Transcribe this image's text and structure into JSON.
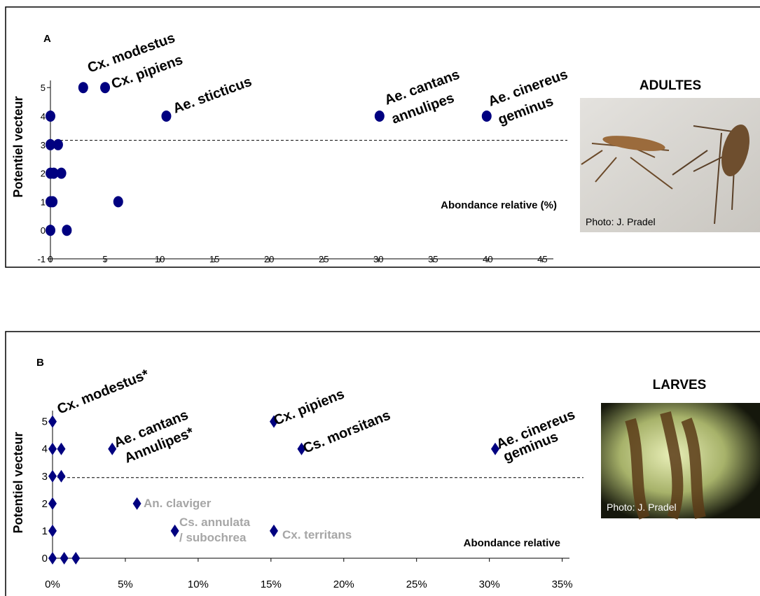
{
  "chart_data": [
    {
      "type": "scatter",
      "panel_label": "A",
      "y_label": "Potentiel vecteur",
      "x_label": "Abondance relative (%)",
      "marker": "circle",
      "color": "#000080",
      "x": [
        0,
        1.5,
        0,
        0.2,
        6.2,
        0,
        0.3,
        1,
        0,
        0.7,
        0,
        10.6,
        30.1,
        39.9,
        3,
        5
      ],
      "values": [
        0,
        0,
        1,
        1,
        1,
        2,
        2,
        2,
        3,
        3,
        4,
        4,
        4,
        4,
        5,
        5
      ],
      "xlim": [
        0,
        46
      ],
      "ylim": [
        -1,
        5.25
      ],
      "xticks": [
        0,
        5,
        10,
        15,
        20,
        25,
        30,
        35,
        40,
        45
      ],
      "yticks": [
        -1,
        0,
        1,
        2,
        3,
        4,
        5
      ],
      "reference_line": 3.15,
      "annotations": [
        {
          "lines": [
            "Cx. modestus"
          ],
          "color": "#000000"
        },
        {
          "lines": [
            "Cx. pipiens"
          ],
          "color": "#000000"
        },
        {
          "lines": [
            "Ae. sticticus"
          ],
          "color": "#000000"
        },
        {
          "lines": [
            "Ae. cantans",
            "annulipes"
          ],
          "color": "#000000"
        },
        {
          "lines": [
            "Ae. cinereus",
            "geminus"
          ],
          "color": "#000000"
        }
      ],
      "photo_title": "ADULTES",
      "photo_credit": "Photo: J. Pradel"
    },
    {
      "type": "scatter",
      "panel_label": "B",
      "y_label": "Potentiel vecteur",
      "x_label": "Abondance relative",
      "marker": "diamond",
      "color": "#000080",
      "x": [
        0,
        0.8,
        1.6,
        0,
        8.4,
        15.2,
        0,
        5.8,
        0,
        0.6,
        0,
        0.6,
        4.1,
        17.1,
        30.4,
        0,
        15.2
      ],
      "values": [
        0,
        0,
        0,
        1,
        1,
        1,
        2,
        2,
        3,
        3,
        4,
        4,
        4,
        4,
        4,
        5,
        5
      ],
      "xlim": [
        0,
        35.5
      ],
      "ylim": [
        0,
        5.4
      ],
      "xticks": [
        {
          "value": 0,
          "label": "0%"
        },
        {
          "value": 5,
          "label": "5%"
        },
        {
          "value": 10,
          "label": "10%"
        },
        {
          "value": 15,
          "label": "15%"
        },
        {
          "value": 20,
          "label": "20%"
        },
        {
          "value": 25,
          "label": "25%"
        },
        {
          "value": 30,
          "label": "30%"
        },
        {
          "value": 35,
          "label": "35%"
        }
      ],
      "yticks": [
        0,
        1,
        2,
        3,
        4,
        5
      ],
      "reference_line": 2.95,
      "annotations": [
        {
          "lines": [
            "Cx. modestus*"
          ],
          "color": "#000000"
        },
        {
          "lines": [
            "Ae. cantans",
            "Annulipes*"
          ],
          "color": "#000000"
        },
        {
          "lines": [
            "Cx. pipiens"
          ],
          "color": "#000000"
        },
        {
          "lines": [
            "Cs. morsitans"
          ],
          "color": "#000000"
        },
        {
          "lines": [
            "Ae. cinereus",
            "geminus"
          ],
          "color": "#000000"
        },
        {
          "lines": [
            "An. claviger"
          ],
          "color": "#a6a6a6"
        },
        {
          "lines": [
            "Cs. annulata",
            "/ subochrea"
          ],
          "color": "#a6a6a6"
        },
        {
          "lines": [
            "Cx. territans"
          ],
          "color": "#a6a6a6"
        }
      ],
      "photo_title": "LARVES",
      "photo_credit": "Photo: J. Pradel"
    }
  ]
}
